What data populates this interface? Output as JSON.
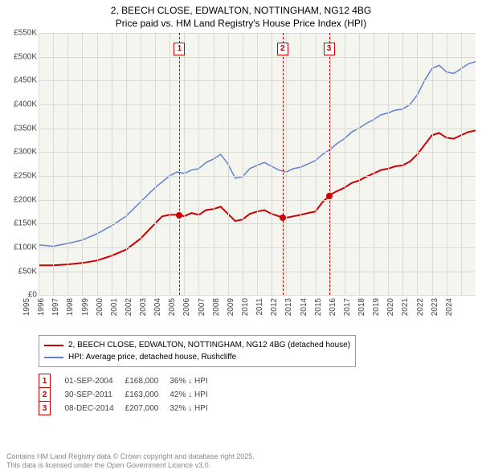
{
  "title_line1": "2, BEECH CLOSE, EDWALTON, NOTTINGHAM, NG12 4BG",
  "title_line2": "Price paid vs. HM Land Registry's House Price Index (HPI)",
  "chart": {
    "type": "line",
    "background_color": "#f5f5f0",
    "grid_color": "#d9d9d5",
    "text_color": "#444444",
    "ylim": [
      0,
      550
    ],
    "ytick_step": 50,
    "ylabels": [
      "£0",
      "£50K",
      "£100K",
      "£150K",
      "£200K",
      "£250K",
      "£300K",
      "£350K",
      "£400K",
      "£450K",
      "£500K",
      "£550K"
    ],
    "xlim": [
      1995,
      2025
    ],
    "xlabels": [
      "1995",
      "1996",
      "1997",
      "1998",
      "1999",
      "2000",
      "2001",
      "2002",
      "2003",
      "2004",
      "2005",
      "2006",
      "2007",
      "2008",
      "2009",
      "2010",
      "2011",
      "2012",
      "2013",
      "2014",
      "2015",
      "2016",
      "2017",
      "2018",
      "2019",
      "2020",
      "2021",
      "2022",
      "2023",
      "2024"
    ],
    "series_red": {
      "color": "#cc0000",
      "width": 2,
      "label": "2, BEECH CLOSE, EDWALTON, NOTTINGHAM, NG12 4BG (detached house)",
      "data": [
        [
          1995,
          62
        ],
        [
          1996,
          62
        ],
        [
          1997,
          64
        ],
        [
          1998,
          67
        ],
        [
          1999,
          72
        ],
        [
          2000,
          82
        ],
        [
          2001,
          95
        ],
        [
          2002,
          118
        ],
        [
          2003,
          150
        ],
        [
          2003.5,
          165
        ],
        [
          2004,
          168
        ],
        [
          2004.67,
          168
        ],
        [
          2005,
          165
        ],
        [
          2005.5,
          172
        ],
        [
          2006,
          168
        ],
        [
          2006.5,
          178
        ],
        [
          2007,
          180
        ],
        [
          2007.5,
          185
        ],
        [
          2008,
          170
        ],
        [
          2008.5,
          155
        ],
        [
          2009,
          158
        ],
        [
          2009.5,
          170
        ],
        [
          2010,
          175
        ],
        [
          2010.5,
          178
        ],
        [
          2011,
          170
        ],
        [
          2011.5,
          165
        ],
        [
          2011.75,
          163
        ],
        [
          2012,
          162
        ],
        [
          2012.5,
          165
        ],
        [
          2013,
          168
        ],
        [
          2013.5,
          172
        ],
        [
          2014,
          175
        ],
        [
          2014.5,
          195
        ],
        [
          2014.94,
          207
        ],
        [
          2015,
          210
        ],
        [
          2015.5,
          218
        ],
        [
          2016,
          225
        ],
        [
          2016.5,
          235
        ],
        [
          2017,
          240
        ],
        [
          2017.5,
          248
        ],
        [
          2018,
          255
        ],
        [
          2018.5,
          262
        ],
        [
          2019,
          265
        ],
        [
          2019.5,
          270
        ],
        [
          2020,
          272
        ],
        [
          2020.5,
          280
        ],
        [
          2021,
          295
        ],
        [
          2021.5,
          315
        ],
        [
          2022,
          335
        ],
        [
          2022.5,
          340
        ],
        [
          2023,
          330
        ],
        [
          2023.5,
          328
        ],
        [
          2024,
          335
        ],
        [
          2024.5,
          342
        ],
        [
          2025,
          345
        ]
      ]
    },
    "series_blue": {
      "color": "#6080d0",
      "width": 1.5,
      "label": "HPI: Average price, detached house, Rushcliffe",
      "data": [
        [
          1995,
          105
        ],
        [
          1996,
          102
        ],
        [
          1997,
          108
        ],
        [
          1998,
          115
        ],
        [
          1999,
          128
        ],
        [
          2000,
          145
        ],
        [
          2001,
          165
        ],
        [
          2002,
          195
        ],
        [
          2003,
          225
        ],
        [
          2004,
          250
        ],
        [
          2004.5,
          258
        ],
        [
          2005,
          255
        ],
        [
          2005.5,
          262
        ],
        [
          2006,
          265
        ],
        [
          2006.5,
          278
        ],
        [
          2007,
          285
        ],
        [
          2007.5,
          295
        ],
        [
          2008,
          275
        ],
        [
          2008.5,
          245
        ],
        [
          2009,
          248
        ],
        [
          2009.5,
          265
        ],
        [
          2010,
          272
        ],
        [
          2010.5,
          278
        ],
        [
          2011,
          270
        ],
        [
          2011.5,
          262
        ],
        [
          2012,
          258
        ],
        [
          2012.5,
          265
        ],
        [
          2013,
          268
        ],
        [
          2013.5,
          275
        ],
        [
          2014,
          282
        ],
        [
          2014.5,
          295
        ],
        [
          2015,
          305
        ],
        [
          2015.5,
          318
        ],
        [
          2016,
          328
        ],
        [
          2016.5,
          342
        ],
        [
          2017,
          350
        ],
        [
          2017.5,
          360
        ],
        [
          2018,
          368
        ],
        [
          2018.5,
          378
        ],
        [
          2019,
          382
        ],
        [
          2019.5,
          388
        ],
        [
          2020,
          390
        ],
        [
          2020.5,
          400
        ],
        [
          2021,
          420
        ],
        [
          2021.5,
          450
        ],
        [
          2022,
          475
        ],
        [
          2022.5,
          482
        ],
        [
          2023,
          468
        ],
        [
          2023.5,
          465
        ],
        [
          2024,
          475
        ],
        [
          2024.5,
          485
        ],
        [
          2025,
          490
        ]
      ]
    },
    "markers": [
      {
        "num": "1",
        "x": 2004.67,
        "y": 168,
        "top_y": 85
      },
      {
        "num": "2",
        "x": 2011.75,
        "y": 163,
        "top_y": 85
      },
      {
        "num": "3",
        "x": 2014.94,
        "y": 207,
        "top_y": 85
      }
    ]
  },
  "legend": {
    "red_label": "2, BEECH CLOSE, EDWALTON, NOTTINGHAM, NG12 4BG (detached house)",
    "blue_label": "HPI: Average price, detached house, Rushcliffe"
  },
  "sales": [
    {
      "num": "1",
      "date": "01-SEP-2004",
      "price": "£168,000",
      "delta": "36% ↓ HPI"
    },
    {
      "num": "2",
      "date": "30-SEP-2011",
      "price": "£163,000",
      "delta": "42% ↓ HPI"
    },
    {
      "num": "3",
      "date": "08-DEC-2014",
      "price": "£207,000",
      "delta": "32% ↓ HPI"
    }
  ],
  "footnote_line1": "Contains HM Land Registry data © Crown copyright and database right 2025.",
  "footnote_line2": "This data is licensed under the Open Government Licence v3.0."
}
